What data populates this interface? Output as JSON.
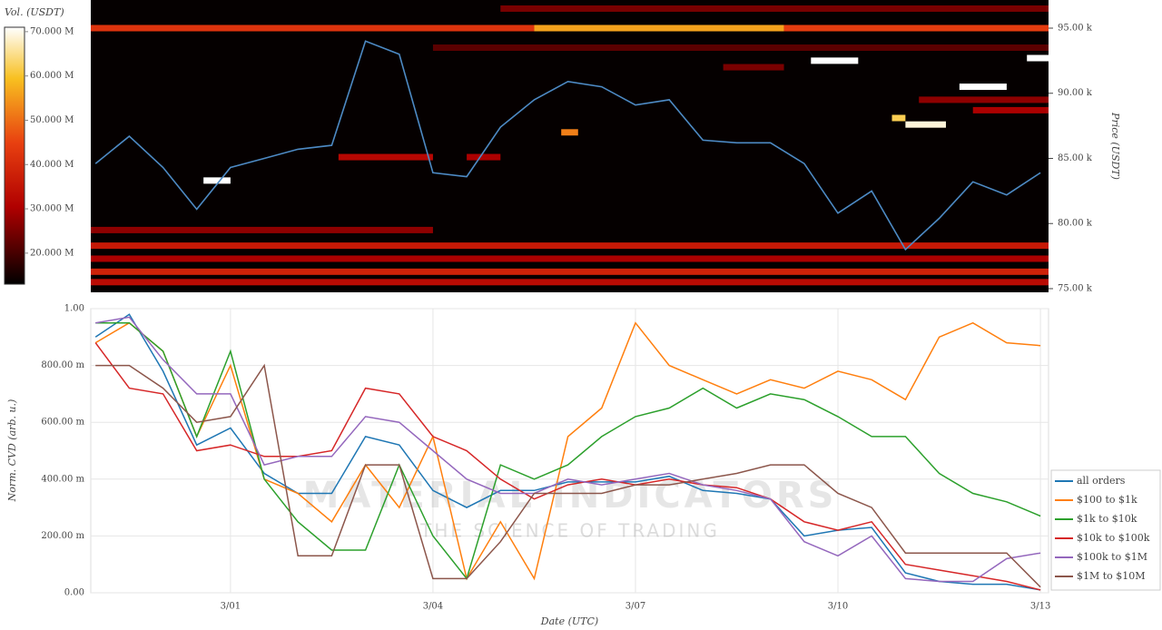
{
  "chart_data": [
    {
      "type": "heatmap",
      "colorbar_title": "Vol. (USDT)",
      "clim": [
        13000000,
        71000000
      ],
      "cticks": [
        {
          "value": 20000000,
          "label": "20.000 M"
        },
        {
          "value": 30000000,
          "label": "30.000 M"
        },
        {
          "value": 40000000,
          "label": "40.000 M"
        },
        {
          "value": 50000000,
          "label": "50.000 M"
        },
        {
          "value": 60000000,
          "label": "60.000 M"
        },
        {
          "value": 70000000,
          "label": "70.000 M"
        }
      ],
      "y_label": "Price (USDT)",
      "xlim": [
        -2.07,
        12.12
      ],
      "ylim": [
        74720,
        97160
      ],
      "yticks": [
        {
          "value": 75000,
          "label": "75.00 k"
        },
        {
          "value": 80000,
          "label": "80.00 k"
        },
        {
          "value": 85000,
          "label": "85.00 k"
        },
        {
          "value": 90000,
          "label": "90.00 k"
        },
        {
          "value": 95000,
          "label": "95.00 k"
        }
      ],
      "x": [
        -2,
        -1.5,
        -1,
        -0.5,
        0,
        0.5,
        1,
        1.5,
        2,
        2.5,
        3,
        3.5,
        4,
        4.5,
        5,
        5.5,
        6,
        6.5,
        7,
        7.5,
        8,
        8.5,
        9,
        9.5,
        10,
        10.5,
        11,
        11.5,
        12
      ],
      "price": {
        "color": "#4d8ac4",
        "values": [
          84600,
          86700,
          84300,
          81100,
          84300,
          85000,
          85700,
          86000,
          94000,
          93000,
          83900,
          83600,
          87400,
          89500,
          90900,
          90500,
          89100,
          89500,
          86400,
          86200,
          86200,
          84600,
          80800,
          82500,
          78000,
          80400,
          83200,
          82200,
          83900
        ]
      },
      "bands": [
        {
          "price": 95000,
          "start": -2.07,
          "end": 4.5,
          "volume": 42000000
        },
        {
          "price": 95000,
          "start": 4.5,
          "end": 8.2,
          "volume": 56000000
        },
        {
          "price": 95000,
          "start": 8.2,
          "end": 12.12,
          "volume": 44000000
        },
        {
          "price": 96500,
          "start": 4,
          "end": 12.12,
          "volume": 25000000
        },
        {
          "price": 93500,
          "start": 3,
          "end": 12.12,
          "volume": 22000000
        },
        {
          "price": 92500,
          "start": 8.6,
          "end": 9.3,
          "volume": 71000000
        },
        {
          "price": 90500,
          "start": 10.8,
          "end": 11.5,
          "volume": 71000000
        },
        {
          "price": 92700,
          "start": 11.8,
          "end": 12.12,
          "volume": 71000000
        },
        {
          "price": 87600,
          "start": 10.0,
          "end": 10.6,
          "volume": 69000000
        },
        {
          "price": 88100,
          "start": 9.8,
          "end": 10.0,
          "volume": 62000000
        },
        {
          "price": 87000,
          "start": 4.9,
          "end": 5.15,
          "volume": 52000000
        },
        {
          "price": 83300,
          "start": -0.4,
          "end": 0.0,
          "volume": 71000000
        },
        {
          "price": 85100,
          "start": 1.6,
          "end": 3.0,
          "volume": 32000000
        },
        {
          "price": 85100,
          "start": 3.5,
          "end": 4.0,
          "volume": 30000000
        },
        {
          "price": 79500,
          "start": -2.07,
          "end": 3.0,
          "volume": 27000000
        },
        {
          "price": 78300,
          "start": -2.07,
          "end": 12.12,
          "volume": 36000000
        },
        {
          "price": 77300,
          "start": -2.07,
          "end": 12.12,
          "volume": 30000000
        },
        {
          "price": 76300,
          "start": -2.07,
          "end": 12.12,
          "volume": 38000000
        },
        {
          "price": 75500,
          "start": -2.07,
          "end": 12.12,
          "volume": 33000000
        },
        {
          "price": 92000,
          "start": 7.3,
          "end": 8.2,
          "volume": 25000000
        },
        {
          "price": 89500,
          "start": 10.2,
          "end": 12.12,
          "volume": 27000000
        },
        {
          "price": 88700,
          "start": 11.0,
          "end": 12.12,
          "volume": 30000000
        }
      ]
    },
    {
      "type": "line",
      "x_label": "Date (UTC)",
      "y_label": "Norm. CVD (arb. u.)",
      "watermark": "MATERIAL INDICATORS",
      "watermark_subtitle": "THE SCIENCE OF TRADING",
      "grid": true,
      "xlim": [
        -2.07,
        12.12
      ],
      "xticks": [
        {
          "value": 0,
          "label": "3/01"
        },
        {
          "value": 3,
          "label": "3/04"
        },
        {
          "value": 6,
          "label": "3/07"
        },
        {
          "value": 9,
          "label": "3/10"
        },
        {
          "value": 12,
          "label": "3/13"
        }
      ],
      "ylim": [
        0,
        1
      ],
      "yticks": [
        {
          "value": 0,
          "label": "0.00"
        },
        {
          "value": 0.2,
          "label": "200.00 m"
        },
        {
          "value": 0.4,
          "label": "400.00 m"
        },
        {
          "value": 0.6,
          "label": "600.00 m"
        },
        {
          "value": 0.8,
          "label": "800.00 m"
        },
        {
          "value": 1,
          "label": "1.00"
        }
      ],
      "x": [
        -2,
        -1.5,
        -1,
        -0.5,
        0,
        0.5,
        1,
        1.5,
        2,
        2.5,
        3,
        3.5,
        4,
        4.5,
        5,
        5.5,
        6,
        6.5,
        7,
        7.5,
        8,
        8.5,
        9,
        9.5,
        10,
        10.5,
        11,
        11.5,
        12
      ],
      "series": [
        {
          "name": "all orders",
          "color": "#1f77b4",
          "values": [
            0.9,
            0.98,
            0.78,
            0.52,
            0.58,
            0.42,
            0.35,
            0.35,
            0.55,
            0.52,
            0.36,
            0.3,
            0.36,
            0.36,
            0.39,
            0.39,
            0.39,
            0.41,
            0.36,
            0.35,
            0.33,
            0.2,
            0.22,
            0.23,
            0.07,
            0.04,
            0.03,
            0.03,
            0.01
          ]
        },
        {
          "name": "$100 to $1k",
          "color": "#ff7f0e",
          "values": [
            0.88,
            0.95,
            0.85,
            0.55,
            0.8,
            0.4,
            0.35,
            0.25,
            0.45,
            0.3,
            0.55,
            0.05,
            0.25,
            0.05,
            0.55,
            0.65,
            0.95,
            0.8,
            0.75,
            0.7,
            0.75,
            0.72,
            0.78,
            0.75,
            0.68,
            0.9,
            0.95,
            0.88,
            0.87
          ]
        },
        {
          "name": "$1k to $10k",
          "color": "#2ca02c",
          "values": [
            0.95,
            0.95,
            0.85,
            0.55,
            0.85,
            0.4,
            0.25,
            0.15,
            0.15,
            0.45,
            0.2,
            0.05,
            0.45,
            0.4,
            0.45,
            0.55,
            0.62,
            0.65,
            0.72,
            0.65,
            0.7,
            0.68,
            0.62,
            0.55,
            0.55,
            0.42,
            0.35,
            0.32,
            0.27
          ]
        },
        {
          "name": "$10k to $100k",
          "color": "#d62728",
          "values": [
            0.88,
            0.72,
            0.7,
            0.5,
            0.52,
            0.48,
            0.48,
            0.5,
            0.72,
            0.7,
            0.55,
            0.5,
            0.4,
            0.33,
            0.38,
            0.4,
            0.38,
            0.4,
            0.38,
            0.37,
            0.33,
            0.25,
            0.22,
            0.25,
            0.1,
            0.08,
            0.06,
            0.04,
            0.01
          ]
        },
        {
          "name": "$100k to $1M",
          "color": "#9467bd",
          "values": [
            0.95,
            0.97,
            0.82,
            0.7,
            0.7,
            0.45,
            0.48,
            0.48,
            0.62,
            0.6,
            0.5,
            0.4,
            0.35,
            0.35,
            0.4,
            0.38,
            0.4,
            0.42,
            0.38,
            0.36,
            0.33,
            0.18,
            0.13,
            0.2,
            0.05,
            0.04,
            0.04,
            0.12,
            0.14
          ]
        },
        {
          "name": "$1M to $10M",
          "color": "#8c564b",
          "values": [
            0.8,
            0.8,
            0.72,
            0.6,
            0.62,
            0.8,
            0.13,
            0.13,
            0.45,
            0.45,
            0.05,
            0.05,
            0.18,
            0.35,
            0.35,
            0.35,
            0.38,
            0.38,
            0.4,
            0.42,
            0.45,
            0.45,
            0.35,
            0.3,
            0.14,
            0.14,
            0.14,
            0.14,
            0.02
          ]
        }
      ]
    }
  ]
}
